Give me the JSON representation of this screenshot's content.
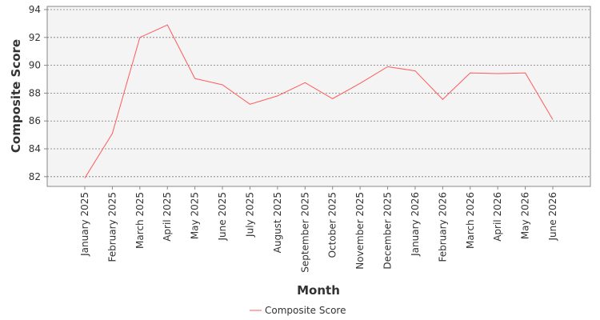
{
  "chart_data": {
    "type": "line",
    "categories": [
      "January 2025",
      "February 2025",
      "March 2025",
      "April 2025",
      "May 2025",
      "June 2025",
      "July 2025",
      "August 2025",
      "September 2025",
      "October 2025",
      "November 2025",
      "December 2025",
      "January 2026",
      "February 2026",
      "March 2026",
      "April 2026",
      "May 2026",
      "June 2026"
    ],
    "series": [
      {
        "name": "Composite Score",
        "color": "#ff5a5a",
        "values": [
          81.9,
          85.1,
          92.0,
          92.9,
          89.05,
          88.6,
          87.2,
          87.8,
          88.75,
          87.6,
          88.7,
          89.9,
          89.6,
          87.55,
          89.45,
          89.4,
          89.45,
          86.1
        ]
      }
    ],
    "x_label": "Month",
    "y_label": "Composite Score",
    "ylim": [
      81.3,
      94.23
    ],
    "yticks": [
      82,
      84,
      86,
      88,
      90,
      92,
      94
    ],
    "grid": true,
    "legend": "bottom"
  }
}
